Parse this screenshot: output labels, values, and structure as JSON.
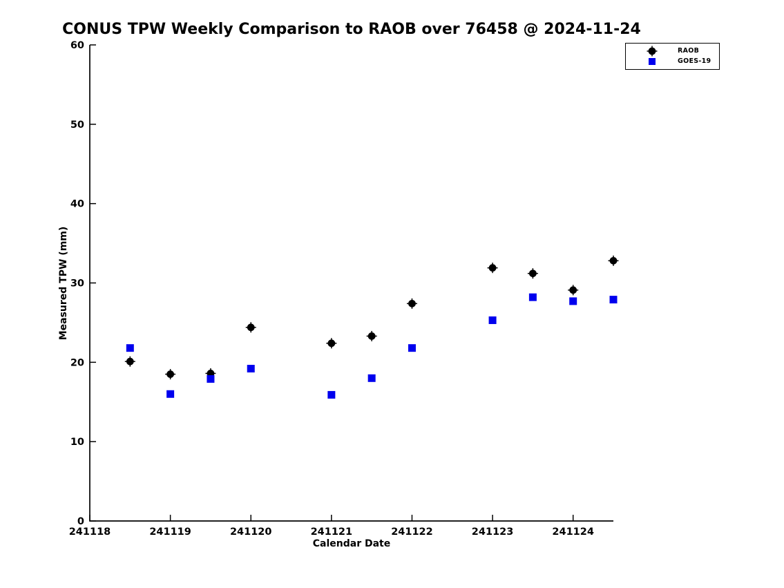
{
  "title": "CONUS TPW Weekly Comparison to RAOB over 76458 @ 2024-11-24",
  "legend": {
    "items": [
      {
        "label": "RAOB",
        "marker": "circle",
        "color": "#000000"
      },
      {
        "label": "GOES-19",
        "marker": "square",
        "color": "#0000ee"
      }
    ]
  },
  "chart_data": {
    "type": "scatter",
    "title": "CONUS TPW Weekly Comparison to RAOB over 76458 @ 2024-11-24",
    "xlabel": "Calendar Date",
    "ylabel": "Measured TPW (mm)",
    "xlim": [
      241118,
      241124.5
    ],
    "ylim": [
      0,
      60
    ],
    "x_ticks": [
      241118,
      241119,
      241120,
      241121,
      241122,
      241123,
      241124
    ],
    "y_ticks": [
      0,
      10,
      20,
      30,
      40,
      50,
      60
    ],
    "grid": false,
    "legend_position": "upper right",
    "x": [
      241118.5,
      241119,
      241119.5,
      241120,
      241121,
      241121.5,
      241122,
      241123,
      241123.5,
      241124,
      241124.5
    ],
    "series": [
      {
        "name": "RAOB",
        "marker": "circle",
        "color": "#000000",
        "values": [
          20.1,
          18.5,
          18.6,
          24.4,
          22.4,
          23.3,
          27.4,
          31.9,
          31.2,
          29.1,
          32.8
        ]
      },
      {
        "name": "GOES-19",
        "marker": "square",
        "color": "#0000ee",
        "values": [
          21.8,
          16.0,
          17.9,
          19.2,
          15.9,
          18.0,
          21.8,
          25.3,
          28.2,
          27.7,
          27.9
        ]
      }
    ]
  }
}
